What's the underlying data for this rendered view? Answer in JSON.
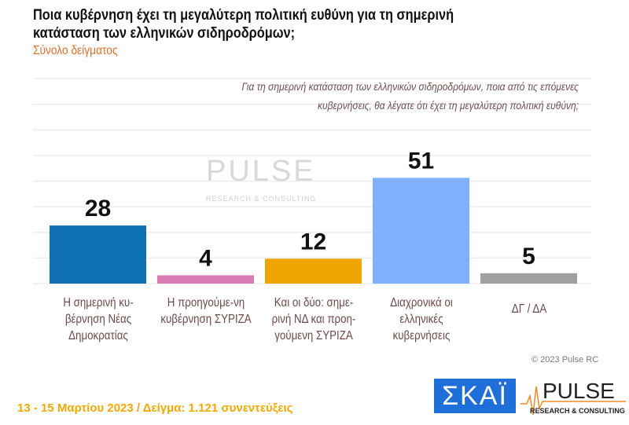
{
  "title": "Ποια κυβέρνηση έχει τη μεγαλύτερη πολιτική ευθύνη για τη σημερινή κατάσταση των ελληνικών σιδηροδρόμων;",
  "subtitle": "Σύνολο δείγματος",
  "question": "Για τη σημερινή κατάσταση των ελληνικών σιδηροδρόμων, ποια από τις επόμενες κυβερνήσεις, θα λέγατε ότι έχει τη μεγαλύτερη πολιτική ευθύνη;",
  "chart_data": {
    "type": "bar",
    "categories": [
      "Η σημερινή κυ-βέρνηση Νέας Δημοκρατίας",
      "Η προηγούμε-νη κυβέρνηση ΣΥΡΙΖΑ",
      "Και οι δύο: σημε-ρινή ΝΔ και προη-γούμενη ΣΥΡΙΖΑ",
      "Διαχρονικά οι ελληνικές κυβερνήσεις",
      "ΔΓ / ΔΑ"
    ],
    "values": [
      28,
      4,
      12,
      51,
      5
    ],
    "colors": [
      "#0f6fb5",
      "#d97bb4",
      "#f0a500",
      "#7fb0ff",
      "#a0a0a0"
    ],
    "ylim": [
      0,
      100
    ],
    "grid": true
  },
  "watermark": {
    "brand": "PULSE",
    "tagline": "RESEARCH & CONSULTING"
  },
  "copyright": "© 2023 Pulse RC",
  "footer": "13 - 15  Μαρτίου  2023  /  Δείγμα:  1.121 συνεντεύξεις",
  "logos": {
    "skai": "ΣΚΑΪ",
    "pulse": "PULSE",
    "pulse_tagline": "RESEARCH & CONSULTING"
  }
}
